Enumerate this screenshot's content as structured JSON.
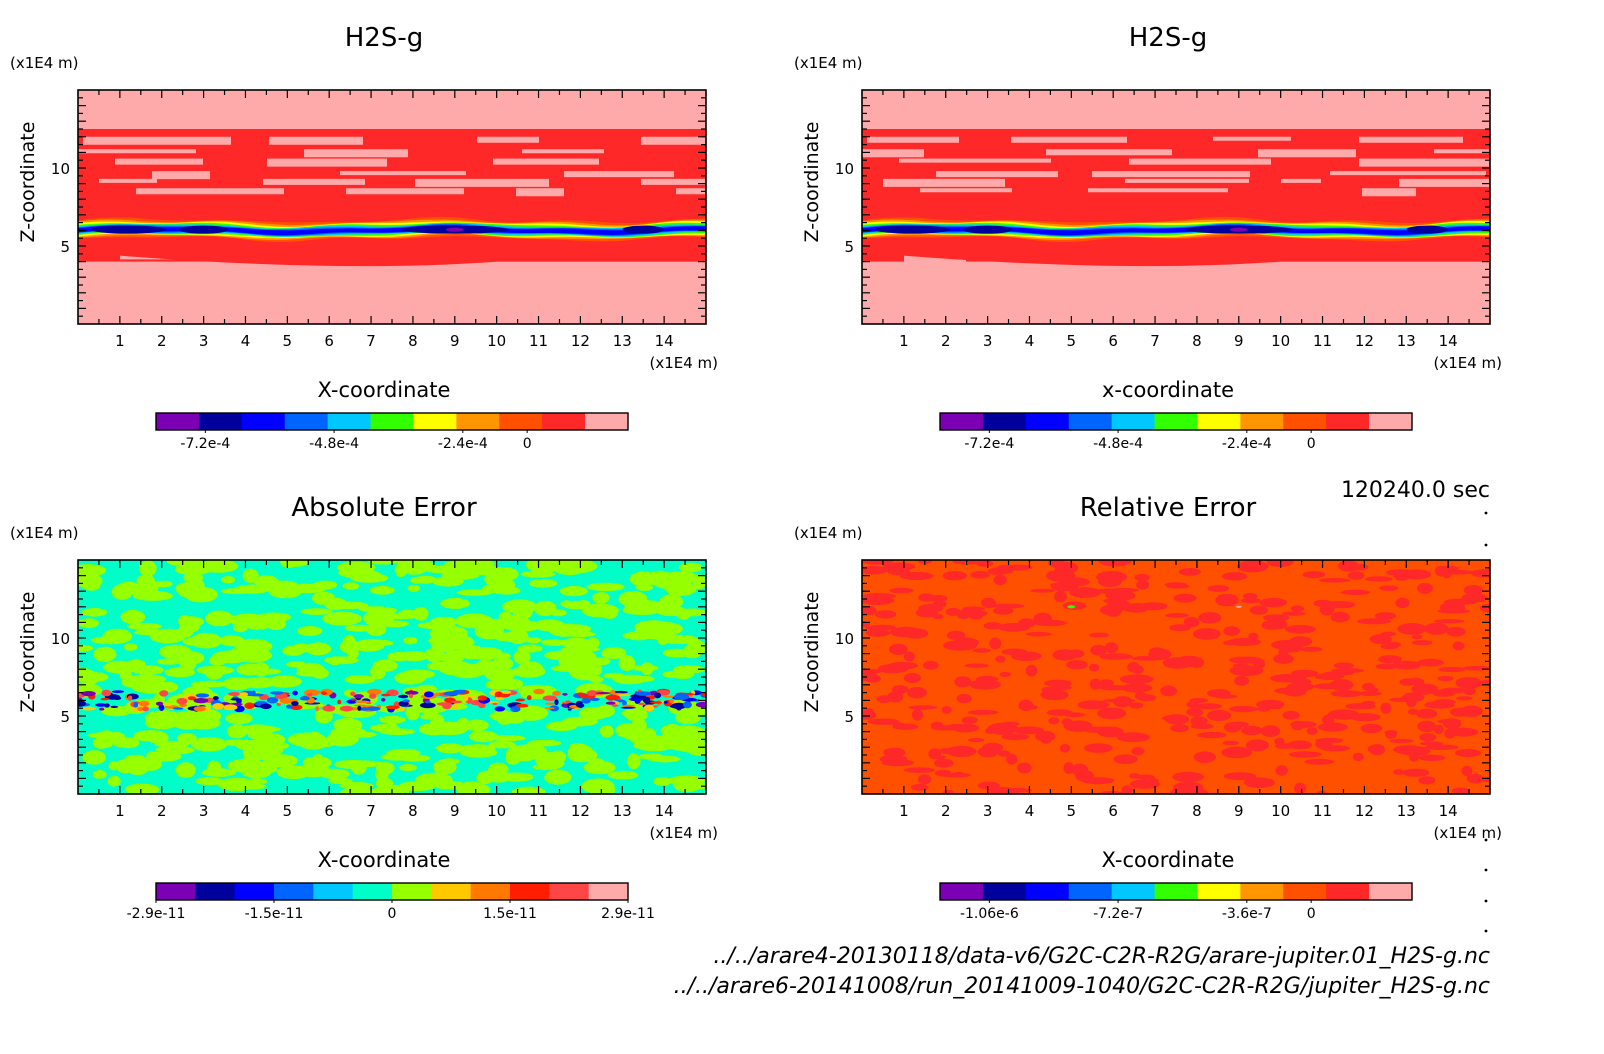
{
  "time_label": "120240.0 sec",
  "footer": {
    "file1": "../../arare4-20130118/data-v6/G2C-C2R-R2G/arare-jupiter.01_H2S-g.nc",
    "file2": "../../arare6-20141008/run_20141009-1040/G2C-C2R-R2G/jupiter_H2S-g.nc"
  },
  "chart_data": [
    {
      "type": "heatmap",
      "title": "H2S-g",
      "xlabel": "X-coordinate",
      "ylabel": "Z-coordinate",
      "x_unit": "(x1E4 m)",
      "y_unit": "(x1E4 m)",
      "xlim": [
        0,
        15
      ],
      "ylim": [
        0,
        15
      ],
      "x_ticks": [
        1,
        2,
        3,
        4,
        5,
        6,
        7,
        8,
        9,
        10,
        11,
        12,
        13,
        14
      ],
      "y_ticks": [
        5,
        10
      ],
      "palette": [
        "#7b00b4",
        "#00009c",
        "#0000ff",
        "#0064ff",
        "#00c8ff",
        "#32ff00",
        "#ffff00",
        "#ff9600",
        "#ff5000",
        "#ff2828",
        "#ffaaaa"
      ],
      "colorbar_ticks": [
        "-7.2e-4",
        "-4.8e-4",
        "-2.4e-4",
        "0"
      ],
      "pattern": "layer"
    },
    {
      "type": "heatmap",
      "title": "H2S-g",
      "xlabel": "x-coordinate",
      "ylabel": "Z-coordinate",
      "x_unit": "(x1E4 m)",
      "y_unit": "(x1E4 m)",
      "xlim": [
        0,
        15
      ],
      "ylim": [
        0,
        15
      ],
      "x_ticks": [
        1,
        2,
        3,
        4,
        5,
        6,
        7,
        8,
        9,
        10,
        11,
        12,
        13,
        14
      ],
      "y_ticks": [
        5,
        10
      ],
      "palette": [
        "#7b00b4",
        "#00009c",
        "#0000ff",
        "#0064ff",
        "#00c8ff",
        "#32ff00",
        "#ffff00",
        "#ff9600",
        "#ff5000",
        "#ff2828",
        "#ffaaaa"
      ],
      "colorbar_ticks": [
        "-7.2e-4",
        "-4.8e-4",
        "-2.4e-4",
        "0"
      ],
      "pattern": "layer"
    },
    {
      "type": "heatmap",
      "title": "Absolute Error",
      "xlabel": "X-coordinate",
      "ylabel": "Z-coordinate",
      "x_unit": "(x1E4 m)",
      "y_unit": "(x1E4 m)",
      "xlim": [
        0,
        15
      ],
      "ylim": [
        0,
        15
      ],
      "x_ticks": [
        1,
        2,
        3,
        4,
        5,
        6,
        7,
        8,
        9,
        10,
        11,
        12,
        13,
        14
      ],
      "y_ticks": [
        5,
        10
      ],
      "palette": [
        "#7b00b4",
        "#00009c",
        "#0000ff",
        "#0064ff",
        "#00c8ff",
        "#00ffc8",
        "#96ff00",
        "#ffc800",
        "#ff7800",
        "#ff1e00",
        "#ff4646",
        "#ffaaaa"
      ],
      "colorbar_ticks": [
        "-2.9e-11",
        "-1.5e-11",
        "0",
        "1.5e-11",
        "2.9e-11"
      ],
      "pattern": "noise"
    },
    {
      "type": "heatmap",
      "title": "Relative Error",
      "xlabel": "X-coordinate",
      "ylabel": "Z-coordinate",
      "x_unit": "(x1E4 m)",
      "y_unit": "(x1E4 m)",
      "xlim": [
        0,
        15
      ],
      "ylim": [
        0,
        15
      ],
      "x_ticks": [
        1,
        2,
        3,
        4,
        5,
        6,
        7,
        8,
        9,
        10,
        11,
        12,
        13,
        14
      ],
      "y_ticks": [
        5,
        10
      ],
      "palette": [
        "#7b00b4",
        "#00009c",
        "#0000ff",
        "#0064ff",
        "#00c8ff",
        "#32ff00",
        "#ffff00",
        "#ff9600",
        "#ff5000",
        "#ff2828",
        "#ffaaaa"
      ],
      "colorbar_ticks": [
        "-1.06e-6",
        "-7.2e-7",
        "-3.6e-7",
        "0"
      ],
      "pattern": "flat"
    }
  ]
}
